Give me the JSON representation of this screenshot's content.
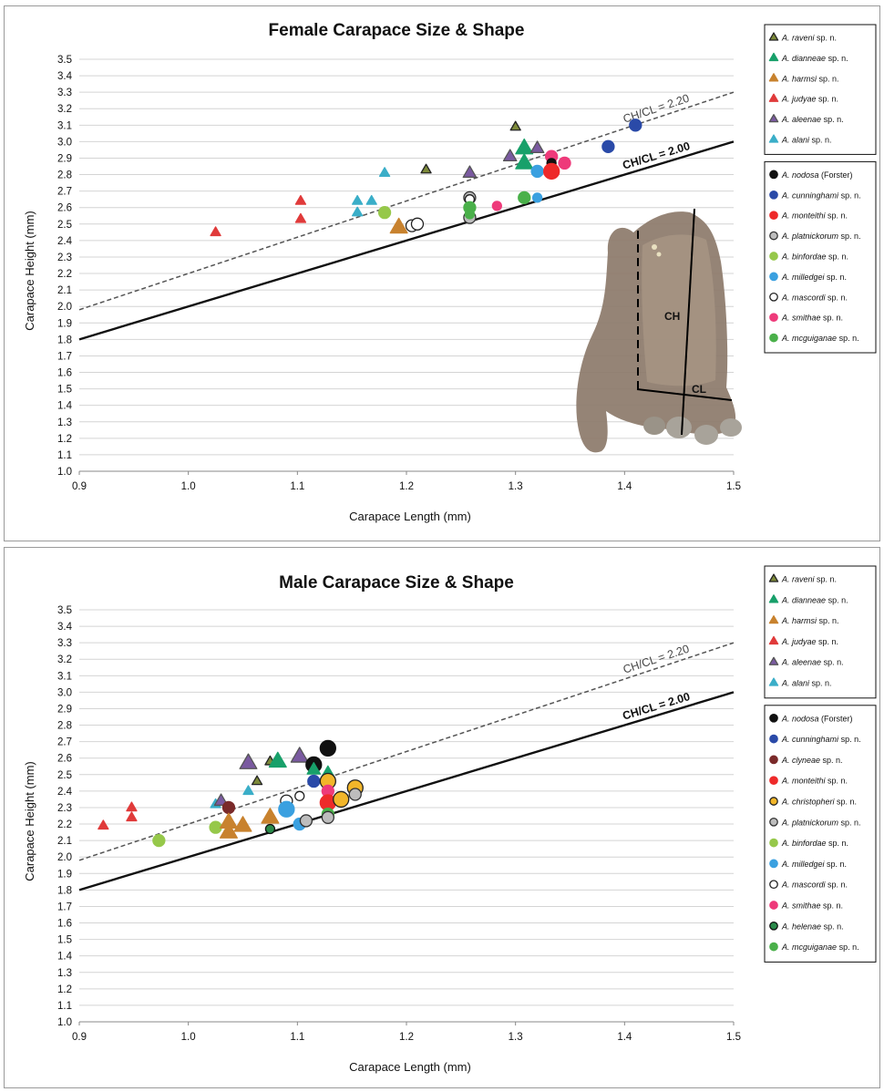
{
  "chart_data": [
    {
      "type": "scatter",
      "title": "Female Carapace Size & Shape",
      "xlabel": "Carapace Length (mm)",
      "ylabel": "Carapace Height (mm)",
      "xlim": [
        0.9,
        1.5
      ],
      "ylim": [
        1.0,
        3.5
      ],
      "xticks": [
        "0.9",
        "1.0",
        "1.1",
        "1.2",
        "1.3",
        "1.4",
        "1.5"
      ],
      "yticks": [
        "1.0",
        "1.1",
        "1.2",
        "1.3",
        "1.4",
        "1.5",
        "1.6",
        "1.7",
        "1.8",
        "1.9",
        "2.0",
        "2.1",
        "2.2",
        "2.3",
        "2.4",
        "2.5",
        "2.6",
        "2.7",
        "2.8",
        "2.9",
        "3.0",
        "3.1",
        "3.2",
        "3.3",
        "3.4",
        "3.5"
      ],
      "grid": "horizontal",
      "reference_lines": [
        {
          "label": "CH/CL = 2.20",
          "slope": 2.2,
          "style": "dashed"
        },
        {
          "label": "CH/CL = 2.00",
          "slope": 2.0,
          "style": "solid"
        }
      ],
      "inset_labels": [
        "CH",
        "CL"
      ],
      "legend_position": "right",
      "legend_groups": [
        [
          {
            "genus": "A.",
            "species": "raveni",
            "suffix": "sp. n.",
            "shape": "triangle",
            "color": "#7d8a3a",
            "stroke": "#222222"
          },
          {
            "genus": "A.",
            "species": "dianneae",
            "suffix": "sp. n.",
            "shape": "triangle",
            "color": "#18a06a",
            "stroke": "#18a06a"
          },
          {
            "genus": "A.",
            "species": "harmsi",
            "suffix": "sp. n.",
            "shape": "triangle",
            "color": "#c8822e",
            "stroke": "#c8822e"
          },
          {
            "genus": "A.",
            "species": "judyae",
            "suffix": "sp. n.",
            "shape": "triangle",
            "color": "#e03a3a",
            "stroke": "#e03a3a"
          },
          {
            "genus": "A.",
            "species": "aleenae",
            "suffix": "sp. n.",
            "shape": "triangle",
            "color": "#7a5aa0",
            "stroke": "#555555"
          },
          {
            "genus": "A.",
            "species": "alani",
            "suffix": "sp. n.",
            "shape": "triangle",
            "color": "#3aaec8",
            "stroke": "#3aaec8"
          }
        ],
        [
          {
            "genus": "A.",
            "species": "nodosa",
            "suffix": "(Forster)",
            "shape": "circle",
            "color": "#111111",
            "stroke": "#111111"
          },
          {
            "genus": "A.",
            "species": "cunninghami",
            "suffix": "sp. n.",
            "shape": "circle",
            "color": "#2a4aa8",
            "stroke": "#2a4aa8"
          },
          {
            "genus": "A.",
            "species": "monteithi",
            "suffix": "sp. n.",
            "shape": "circle",
            "color": "#ee2a2a",
            "stroke": "#ee2a2a"
          },
          {
            "genus": "A.",
            "species": "platnickorum",
            "suffix": "sp. n.",
            "shape": "circle",
            "color": "#bdbdbd",
            "stroke": "#333333"
          },
          {
            "genus": "A.",
            "species": "binfordae",
            "suffix": "sp. n.",
            "shape": "circle",
            "color": "#96c84a",
            "stroke": "#96c84a"
          },
          {
            "genus": "A.",
            "species": "milledgei",
            "suffix": "sp. n.",
            "shape": "circle",
            "color": "#3aa0e0",
            "stroke": "#3aa0e0"
          },
          {
            "genus": "A.",
            "species": "mascordi",
            "suffix": "sp. n.",
            "shape": "circle",
            "color": "#ffffff",
            "stroke": "#222222"
          },
          {
            "genus": "A.",
            "species": "smithae",
            "suffix": "sp. n.",
            "shape": "circle",
            "color": "#ee3a7a",
            "stroke": "#ee3a7a"
          },
          {
            "genus": "A.",
            "species": "mcguiganae",
            "suffix": "sp. n.",
            "shape": "circle",
            "color": "#4ab04a",
            "stroke": "#4ab04a"
          }
        ]
      ],
      "points": [
        {
          "species": "judyae",
          "x": 1.025,
          "y": 2.45,
          "size": "s"
        },
        {
          "species": "judyae",
          "x": 1.103,
          "y": 2.64,
          "size": "s"
        },
        {
          "species": "judyae",
          "x": 1.103,
          "y": 2.53,
          "size": "s"
        },
        {
          "species": "alani",
          "x": 1.155,
          "y": 2.64,
          "size": "s"
        },
        {
          "species": "alani",
          "x": 1.155,
          "y": 2.57,
          "size": "s"
        },
        {
          "species": "alani",
          "x": 1.168,
          "y": 2.64,
          "size": "s"
        },
        {
          "species": "alani",
          "x": 1.18,
          "y": 2.81,
          "size": "s"
        },
        {
          "species": "binfordae",
          "x": 1.18,
          "y": 2.57,
          "size": "m"
        },
        {
          "species": "harmsi",
          "x": 1.193,
          "y": 2.48,
          "size": "l"
        },
        {
          "species": "mascordi",
          "x": 1.205,
          "y": 2.49,
          "size": "m"
        },
        {
          "species": "mascordi",
          "x": 1.21,
          "y": 2.5,
          "size": "m"
        },
        {
          "species": "raveni",
          "x": 1.218,
          "y": 2.83,
          "size": "s"
        },
        {
          "species": "aleenae",
          "x": 1.258,
          "y": 2.81,
          "size": "m"
        },
        {
          "species": "platnickorum",
          "x": 1.258,
          "y": 2.66,
          "size": "m"
        },
        {
          "species": "mascordi",
          "x": 1.258,
          "y": 2.65,
          "size": "s"
        },
        {
          "species": "mcguiganae",
          "x": 1.258,
          "y": 2.6,
          "size": "m"
        },
        {
          "species": "platnickorum",
          "x": 1.258,
          "y": 2.54,
          "size": "m"
        },
        {
          "species": "mcguiganae",
          "x": 1.258,
          "y": 2.56,
          "size": "s"
        },
        {
          "species": "smithae",
          "x": 1.283,
          "y": 2.61,
          "size": "s"
        },
        {
          "species": "aleenae",
          "x": 1.295,
          "y": 2.91,
          "size": "m"
        },
        {
          "species": "raveni",
          "x": 1.3,
          "y": 3.09,
          "size": "s"
        },
        {
          "species": "dianneae",
          "x": 1.308,
          "y": 2.96,
          "size": "l"
        },
        {
          "species": "dianneae",
          "x": 1.308,
          "y": 2.87,
          "size": "l"
        },
        {
          "species": "mcguiganae",
          "x": 1.308,
          "y": 2.66,
          "size": "m"
        },
        {
          "species": "aleenae",
          "x": 1.32,
          "y": 2.96,
          "size": "m"
        },
        {
          "species": "milledgei",
          "x": 1.32,
          "y": 2.82,
          "size": "m"
        },
        {
          "species": "milledgei",
          "x": 1.32,
          "y": 2.66,
          "size": "s"
        },
        {
          "species": "smithae",
          "x": 1.333,
          "y": 2.91,
          "size": "m"
        },
        {
          "species": "nodosa",
          "x": 1.333,
          "y": 2.87,
          "size": "s"
        },
        {
          "species": "monteithi",
          "x": 1.333,
          "y": 2.82,
          "size": "l"
        },
        {
          "species": "smithae",
          "x": 1.345,
          "y": 2.87,
          "size": "m"
        },
        {
          "species": "cunninghami",
          "x": 1.385,
          "y": 2.97,
          "size": "m"
        },
        {
          "species": "cunninghami",
          "x": 1.41,
          "y": 3.1,
          "size": "m"
        }
      ]
    },
    {
      "type": "scatter",
      "title": "Male Carapace Size & Shape",
      "xlabel": "Carapace Length (mm)",
      "ylabel": "Carapace Height (mm)",
      "xlim": [
        0.9,
        1.5
      ],
      "ylim": [
        1.0,
        3.5
      ],
      "xticks": [
        "0.9",
        "1.0",
        "1.1",
        "1.2",
        "1.3",
        "1.4",
        "1.5"
      ],
      "yticks": [
        "1.0",
        "1.1",
        "1.2",
        "1.3",
        "1.4",
        "1.5",
        "1.6",
        "1.7",
        "1.8",
        "1.9",
        "2.0",
        "2.1",
        "2.2",
        "2.3",
        "2.4",
        "2.5",
        "2.6",
        "2.7",
        "2.8",
        "2.9",
        "3.0",
        "3.1",
        "3.2",
        "3.3",
        "3.4",
        "3.5"
      ],
      "grid": "horizontal",
      "reference_lines": [
        {
          "label": "CH/CL = 2.20",
          "slope": 2.2,
          "style": "dashed"
        },
        {
          "label": "CH/CL = 2.00",
          "slope": 2.0,
          "style": "solid"
        }
      ],
      "legend_position": "right",
      "legend_groups": [
        [
          {
            "genus": "A.",
            "species": "raveni",
            "suffix": "sp. n.",
            "shape": "triangle",
            "color": "#7d8a3a",
            "stroke": "#222222"
          },
          {
            "genus": "A.",
            "species": "dianneae",
            "suffix": "sp. n.",
            "shape": "triangle",
            "color": "#18a06a",
            "stroke": "#18a06a"
          },
          {
            "genus": "A.",
            "species": "harmsi",
            "suffix": "sp. n.",
            "shape": "triangle",
            "color": "#c8822e",
            "stroke": "#c8822e"
          },
          {
            "genus": "A.",
            "species": "judyae",
            "suffix": "sp. n.",
            "shape": "triangle",
            "color": "#e03a3a",
            "stroke": "#e03a3a"
          },
          {
            "genus": "A.",
            "species": "aleenae",
            "suffix": "sp. n.",
            "shape": "triangle",
            "color": "#7a5aa0",
            "stroke": "#555555"
          },
          {
            "genus": "A.",
            "species": "alani",
            "suffix": "sp. n.",
            "shape": "triangle",
            "color": "#3aaec8",
            "stroke": "#3aaec8"
          }
        ],
        [
          {
            "genus": "A.",
            "species": "nodosa",
            "suffix": "(Forster)",
            "shape": "circle",
            "color": "#111111",
            "stroke": "#111111"
          },
          {
            "genus": "A.",
            "species": "cunninghami",
            "suffix": "sp. n.",
            "shape": "circle",
            "color": "#2a4aa8",
            "stroke": "#2a4aa8"
          },
          {
            "genus": "A.",
            "species": "clyneae",
            "suffix": "sp. n.",
            "shape": "circle",
            "color": "#7a2a2a",
            "stroke": "#7a2a2a"
          },
          {
            "genus": "A.",
            "species": "monteithi",
            "suffix": "sp. n.",
            "shape": "circle",
            "color": "#ee2a2a",
            "stroke": "#ee2a2a"
          },
          {
            "genus": "A.",
            "species": "christopheri",
            "suffix": "sp. n.",
            "shape": "circle",
            "color": "#f2b62a",
            "stroke": "#222222"
          },
          {
            "genus": "A.",
            "species": "platnickorum",
            "suffix": "sp. n.",
            "shape": "circle",
            "color": "#bdbdbd",
            "stroke": "#333333"
          },
          {
            "genus": "A.",
            "species": "binfordae",
            "suffix": "sp. n.",
            "shape": "circle",
            "color": "#96c84a",
            "stroke": "#96c84a"
          },
          {
            "genus": "A.",
            "species": "milledgei",
            "suffix": "sp. n.",
            "shape": "circle",
            "color": "#3aa0e0",
            "stroke": "#3aa0e0"
          },
          {
            "genus": "A.",
            "species": "mascordi",
            "suffix": "sp. n.",
            "shape": "circle",
            "color": "#ffffff",
            "stroke": "#222222"
          },
          {
            "genus": "A.",
            "species": "smithae",
            "suffix": "sp. n.",
            "shape": "circle",
            "color": "#ee3a7a",
            "stroke": "#ee3a7a"
          },
          {
            "genus": "A.",
            "species": "helenae",
            "suffix": "sp. n.",
            "shape": "circle",
            "color": "#2a8a4a",
            "stroke": "#111111"
          },
          {
            "genus": "A.",
            "species": "mcguiganae",
            "suffix": "sp. n.",
            "shape": "circle",
            "color": "#4ab04a",
            "stroke": "#4ab04a"
          }
        ]
      ],
      "points": [
        {
          "species": "judyae",
          "x": 0.922,
          "y": 2.19,
          "size": "s"
        },
        {
          "species": "judyae",
          "x": 0.948,
          "y": 2.3,
          "size": "s"
        },
        {
          "species": "judyae",
          "x": 0.948,
          "y": 2.24,
          "size": "s"
        },
        {
          "species": "binfordae",
          "x": 0.973,
          "y": 2.1,
          "size": "m"
        },
        {
          "species": "alani",
          "x": 1.025,
          "y": 2.32,
          "size": "s"
        },
        {
          "species": "binfordae",
          "x": 1.025,
          "y": 2.18,
          "size": "m"
        },
        {
          "species": "aleenae",
          "x": 1.03,
          "y": 2.34,
          "size": "m"
        },
        {
          "species": "clyneae",
          "x": 1.037,
          "y": 2.3,
          "size": "m"
        },
        {
          "species": "harmsi",
          "x": 1.037,
          "y": 2.21,
          "size": "l"
        },
        {
          "species": "harmsi",
          "x": 1.037,
          "y": 2.15,
          "size": "l"
        },
        {
          "species": "harmsi",
          "x": 1.05,
          "y": 2.19,
          "size": "l"
        },
        {
          "species": "aleenae",
          "x": 1.055,
          "y": 2.57,
          "size": "l"
        },
        {
          "species": "alani",
          "x": 1.055,
          "y": 2.4,
          "size": "s"
        },
        {
          "species": "raveni",
          "x": 1.063,
          "y": 2.46,
          "size": "s"
        },
        {
          "species": "raveni",
          "x": 1.075,
          "y": 2.58,
          "size": "s"
        },
        {
          "species": "harmsi",
          "x": 1.075,
          "y": 2.24,
          "size": "l"
        },
        {
          "species": "helenae",
          "x": 1.075,
          "y": 2.17,
          "size": "s"
        },
        {
          "species": "dianneae",
          "x": 1.082,
          "y": 2.58,
          "size": "l"
        },
        {
          "species": "mascordi",
          "x": 1.09,
          "y": 2.34,
          "size": "m"
        },
        {
          "species": "milledgei",
          "x": 1.09,
          "y": 2.29,
          "size": "l"
        },
        {
          "species": "aleenae",
          "x": 1.102,
          "y": 2.61,
          "size": "l"
        },
        {
          "species": "mascordi",
          "x": 1.102,
          "y": 2.37,
          "size": "s"
        },
        {
          "species": "milledgei",
          "x": 1.102,
          "y": 2.2,
          "size": "m"
        },
        {
          "species": "platnickorum",
          "x": 1.108,
          "y": 2.22,
          "size": "m"
        },
        {
          "species": "nodosa",
          "x": 1.115,
          "y": 2.56,
          "size": "l"
        },
        {
          "species": "dianneae",
          "x": 1.115,
          "y": 2.53,
          "size": "m"
        },
        {
          "species": "cunninghami",
          "x": 1.115,
          "y": 2.46,
          "size": "m"
        },
        {
          "species": "nodosa",
          "x": 1.128,
          "y": 2.66,
          "size": "l"
        },
        {
          "species": "dianneae",
          "x": 1.128,
          "y": 2.51,
          "size": "m"
        },
        {
          "species": "christopheri",
          "x": 1.128,
          "y": 2.46,
          "size": "l"
        },
        {
          "species": "smithae",
          "x": 1.128,
          "y": 2.4,
          "size": "m"
        },
        {
          "species": "monteithi",
          "x": 1.128,
          "y": 2.33,
          "size": "l"
        },
        {
          "species": "mcguiganae",
          "x": 1.128,
          "y": 2.26,
          "size": "m"
        },
        {
          "species": "platnickorum",
          "x": 1.128,
          "y": 2.24,
          "size": "m"
        },
        {
          "species": "christopheri",
          "x": 1.14,
          "y": 2.35,
          "size": "l"
        },
        {
          "species": "christopheri",
          "x": 1.153,
          "y": 2.42,
          "size": "l"
        },
        {
          "species": "platnickorum",
          "x": 1.153,
          "y": 2.38,
          "size": "m"
        }
      ]
    }
  ]
}
